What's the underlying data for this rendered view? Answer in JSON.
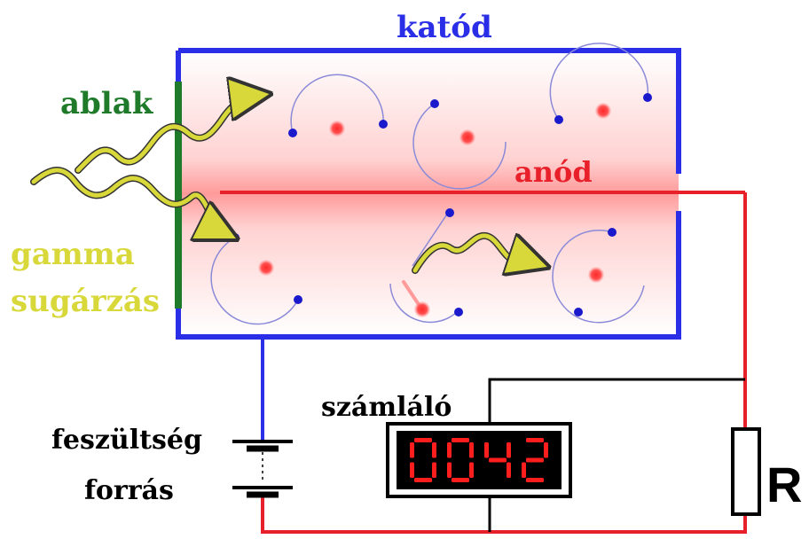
{
  "labels": {
    "cathode": "katód",
    "window": "ablak",
    "anode": "anód",
    "gamma_line1": "gamma",
    "gamma_line2": "sugárzás",
    "counter": "számláló",
    "source_line1": "feszültség",
    "source_line2": "forrás",
    "resistor": "R"
  },
  "display": {
    "digits": [
      "0",
      "0",
      "4",
      "2"
    ]
  },
  "colors": {
    "cathode_blue": "#2a2ee6",
    "anode_red": "#e8202a",
    "window_green": "#1f7a2a",
    "gamma_yellow": "#d8d83a",
    "electron_blue": "#1a1acc",
    "ion_red": "#e83030",
    "display_red": "#ff1e1e",
    "wire_black": "#000000"
  }
}
